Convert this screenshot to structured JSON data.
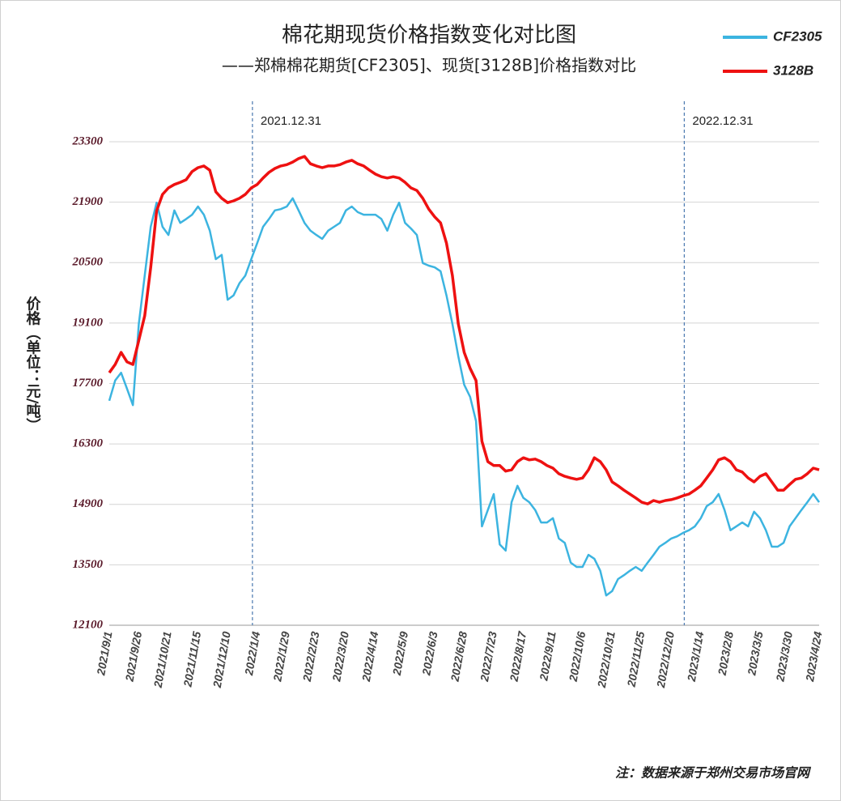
{
  "chart_data": {
    "type": "line",
    "title": "棉花期现货价格指数变化对比图",
    "subtitle": "——郑棉棉花期货[CF2305]、现货[3128B]价格指数对比",
    "y_label": "价格（单位：元/吨）",
    "note": "注：数据来源于郑州交易市场官网",
    "annotations": [
      {
        "label": "2021.12.31"
      },
      {
        "label": "2022.12.31"
      }
    ],
    "categories": [
      "2021/9/1",
      null,
      null,
      null,
      null,
      "2021/9/26",
      null,
      null,
      null,
      null,
      "2021/10/21",
      null,
      null,
      null,
      null,
      "2021/11/15",
      null,
      null,
      null,
      null,
      "2021/12/10",
      null,
      null,
      null,
      null,
      "2022/1/4",
      null,
      null,
      null,
      null,
      "2022/1/29",
      null,
      null,
      null,
      null,
      "2022/2/23",
      null,
      null,
      null,
      null,
      "2022/3/20",
      null,
      null,
      null,
      null,
      "2022/4/14",
      null,
      null,
      null,
      null,
      "2022/5/9",
      null,
      null,
      null,
      null,
      "2022/6/3",
      null,
      null,
      null,
      null,
      "2022/6/28",
      null,
      null,
      null,
      null,
      "2022/7/23",
      null,
      null,
      null,
      null,
      "2022/8/17",
      null,
      null,
      null,
      null,
      "2022/9/11",
      null,
      null,
      null,
      null,
      "2022/10/6",
      null,
      null,
      null,
      null,
      "2022/10/31",
      null,
      null,
      null,
      null,
      "2022/11/25",
      null,
      null,
      null,
      null,
      "2022/12/20",
      null,
      null,
      null,
      null,
      "2023/1/14",
      null,
      null,
      null,
      null,
      "2023/2/8",
      null,
      null,
      null,
      null,
      "2023/3/5",
      null,
      null,
      null,
      null,
      "2023/3/30",
      null,
      null,
      null,
      null,
      "2023/4/24"
    ],
    "series": [
      {
        "name": "CF2305",
        "color": "#3cb4e0",
        "values": [
          17300,
          17770,
          17950,
          17580,
          17200,
          19080,
          20200,
          21330,
          21890,
          21330,
          21140,
          21710,
          21420,
          21510,
          21610,
          21800,
          21610,
          21240,
          20580,
          20680,
          19640,
          19740,
          20020,
          20200,
          20580,
          20950,
          21330,
          21510,
          21710,
          21740,
          21800,
          21990,
          21710,
          21420,
          21240,
          21140,
          21050,
          21240,
          21330,
          21420,
          21710,
          21800,
          21670,
          21610,
          21610,
          21610,
          21510,
          21240,
          21610,
          21890,
          21420,
          21290,
          21140,
          20490,
          20430,
          20390,
          20300,
          19740,
          19080,
          18330,
          17670,
          17390,
          16830,
          14390,
          14770,
          15140,
          13970,
          13830,
          14950,
          15330,
          15050,
          14950,
          14770,
          14480,
          14480,
          14580,
          14110,
          14010,
          13550,
          13450,
          13450,
          13730,
          13640,
          13360,
          12790,
          12890,
          13170,
          13260,
          13360,
          13450,
          13360,
          13550,
          13730,
          13920,
          14010,
          14110,
          14160,
          14240,
          14300,
          14390,
          14580,
          14860,
          14950,
          15140,
          14770,
          14300,
          14390,
          14480,
          14390,
          14730,
          14580,
          14300,
          13920,
          13920,
          14010,
          14390,
          14580,
          14770,
          14950,
          15140,
          14950
        ]
      },
      {
        "name": "3128B",
        "color": "#ee1111",
        "values": [
          17950,
          18140,
          18420,
          18200,
          18140,
          18700,
          19270,
          20390,
          21700,
          22080,
          22230,
          22310,
          22360,
          22420,
          22610,
          22700,
          22740,
          22640,
          22140,
          21990,
          21890,
          21930,
          21990,
          22080,
          22230,
          22310,
          22460,
          22590,
          22680,
          22740,
          22770,
          22830,
          22910,
          22960,
          22790,
          22740,
          22700,
          22740,
          22740,
          22770,
          22830,
          22870,
          22790,
          22740,
          22640,
          22550,
          22490,
          22460,
          22490,
          22460,
          22360,
          22230,
          22170,
          21990,
          21740,
          21560,
          21420,
          20950,
          20200,
          19080,
          18420,
          18050,
          17770,
          16360,
          15890,
          15800,
          15800,
          15670,
          15700,
          15890,
          15980,
          15930,
          15950,
          15890,
          15800,
          15740,
          15610,
          15550,
          15510,
          15480,
          15510,
          15700,
          15980,
          15890,
          15700,
          15420,
          15330,
          15230,
          15140,
          15050,
          14950,
          14910,
          14990,
          14950,
          14990,
          15010,
          15050,
          15100,
          15140,
          15230,
          15330,
          15510,
          15700,
          15930,
          15980,
          15890,
          15700,
          15650,
          15510,
          15420,
          15550,
          15610,
          15420,
          15230,
          15230,
          15360,
          15480,
          15510,
          15610,
          15740,
          15700
        ]
      }
    ],
    "ylim": [
      12100,
      23300
    ],
    "yticks": [
      12100,
      13500,
      14900,
      16300,
      17700,
      19100,
      20500,
      21900,
      23300
    ],
    "grid": true,
    "legend": "top-right"
  }
}
